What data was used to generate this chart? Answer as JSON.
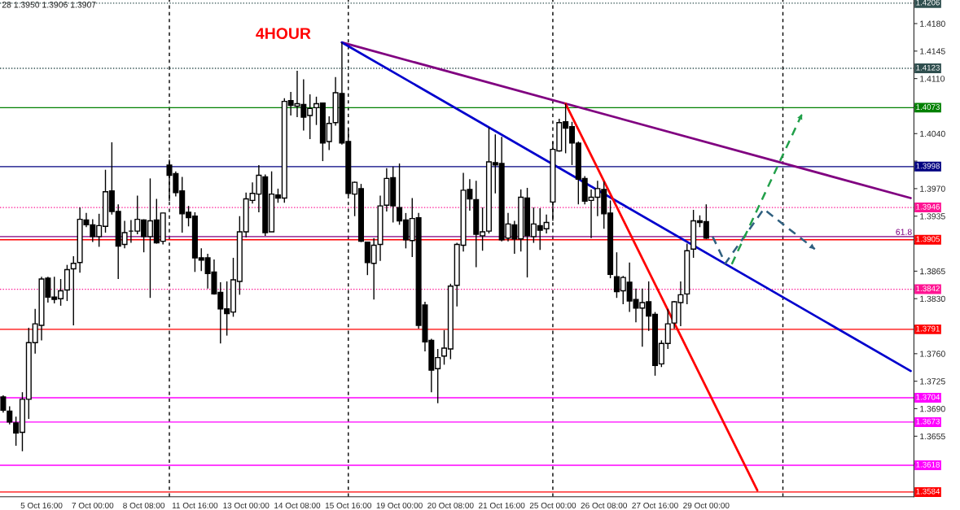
{
  "chart_data": {
    "type": "candlestick",
    "categories": [
      null,
      null,
      null,
      null,
      null,
      null,
      "5 Oct 16:00",
      null,
      null,
      null,
      null,
      null,
      null,
      null,
      "7 Oct 00:00",
      null,
      null,
      null,
      null,
      null,
      null,
      null,
      "8 Oct 08:00",
      null,
      null,
      null,
      null,
      null,
      null,
      null,
      "11 Oct 16:00",
      null,
      null,
      null,
      null,
      null,
      null,
      null,
      "13 Oct 00:00",
      null,
      null,
      null,
      null,
      null,
      null,
      null,
      "14 Oct 08:00",
      null,
      null,
      null,
      null,
      null,
      null,
      null,
      "15 Oct 16:00",
      null,
      null,
      null,
      null,
      null,
      null,
      null,
      "19 Oct 00:00",
      null,
      null,
      null,
      null,
      null,
      null,
      null,
      "20 Oct 08:00",
      null,
      null,
      null,
      null,
      null,
      null,
      null,
      "21 Oct 16:00",
      null,
      null,
      null,
      null,
      null,
      null,
      null,
      "25 Oct 00:00",
      null,
      null,
      null,
      null,
      null,
      null,
      null,
      "26 Oct 08:00",
      null,
      null,
      null,
      null,
      null,
      null,
      null,
      "27 Oct 16:00",
      null,
      null,
      null,
      null,
      null,
      null,
      null,
      "29 Oct 00:00",
      null,
      null,
      null,
      null,
      null,
      null,
      null,
      null,
      null,
      null,
      null,
      null,
      null,
      null,
      null,
      null,
      null,
      null,
      null,
      null,
      null,
      null,
      null,
      null,
      null,
      null,
      null,
      null,
      null,
      null,
      null,
      null
    ],
    "ohlc": [
      [
        1.3705,
        1.3707,
        1.3685,
        1.3688
      ],
      [
        1.3687,
        1.3693,
        1.367,
        1.3673
      ],
      [
        1.3672,
        1.368,
        1.3643,
        1.3659
      ],
      [
        1.366,
        1.3711,
        1.3636,
        1.3702
      ],
      [
        1.3702,
        1.3793,
        1.3677,
        1.3774
      ],
      [
        1.3774,
        1.3817,
        1.376,
        1.3798
      ],
      [
        1.3796,
        1.3858,
        1.3777,
        1.3855
      ],
      [
        1.3856,
        1.3858,
        1.3825,
        1.3832
      ],
      [
        1.3832,
        1.3858,
        1.3824,
        1.3829
      ],
      [
        1.383,
        1.3855,
        1.3821,
        1.384
      ],
      [
        1.3841,
        1.3873,
        1.3827,
        1.3867
      ],
      [
        1.3868,
        1.3884,
        1.3796,
        1.3875
      ],
      [
        1.3876,
        1.3946,
        1.3863,
        1.3931
      ],
      [
        1.393,
        1.3939,
        1.3921,
        1.3924
      ],
      [
        1.3924,
        1.3931,
        1.3902,
        1.3909
      ],
      [
        1.3909,
        1.3938,
        1.3896,
        1.3923
      ],
      [
        1.3922,
        1.3994,
        1.3914,
        1.3966
      ],
      [
        1.3967,
        1.4029,
        1.3937,
        1.3941
      ],
      [
        1.3941,
        1.395,
        1.3855,
        1.3897
      ],
      [
        1.3899,
        1.3929,
        1.3894,
        1.3914
      ],
      [
        1.3916,
        1.393,
        1.3901,
        1.3916
      ],
      [
        1.3916,
        1.3961,
        1.3912,
        1.3931
      ],
      [
        1.393,
        1.3931,
        1.3889,
        1.3909
      ],
      [
        1.3909,
        1.3983,
        1.3831,
        1.3929
      ],
      [
        1.393,
        1.3957,
        1.39,
        1.3901
      ],
      [
        1.3903,
        1.3939,
        1.3899,
        1.3939
      ],
      [
        1.4,
        1.4007,
        1.3954,
        1.3987
      ],
      [
        1.3989,
        1.3992,
        1.396,
        1.3965
      ],
      [
        1.3967,
        1.3985,
        1.3914,
        1.3938
      ],
      [
        1.394,
        1.3948,
        1.3922,
        1.3933
      ],
      [
        1.3935,
        1.394,
        1.3864,
        1.3882
      ],
      [
        1.3882,
        1.3894,
        1.3865,
        1.3879
      ],
      [
        1.3882,
        1.3887,
        1.3843,
        1.3862
      ],
      [
        1.3864,
        1.388,
        1.3835,
        1.3836
      ],
      [
        1.3838,
        1.3851,
        1.3773,
        1.3817
      ],
      [
        1.3817,
        1.3852,
        1.3783,
        1.3811
      ],
      [
        1.3813,
        1.3882,
        1.3807,
        1.3854
      ],
      [
        1.3852,
        1.3935,
        1.3835,
        1.3915
      ],
      [
        1.3915,
        1.3965,
        1.3908,
        1.3957
      ],
      [
        1.3955,
        1.3978,
        1.3951,
        1.3964
      ],
      [
        1.3963,
        1.4,
        1.394,
        1.3987
      ],
      [
        1.3985,
        1.3988,
        1.391,
        1.3914
      ],
      [
        1.3915,
        1.3992,
        1.3915,
        1.3963
      ],
      [
        1.3962,
        1.397,
        1.3952,
        1.3958
      ],
      [
        1.3958,
        1.4085,
        1.3952,
        1.4081
      ],
      [
        1.4082,
        1.4093,
        1.4063,
        1.4076
      ],
      [
        1.4075,
        1.412,
        1.4061,
        1.4078
      ],
      [
        1.4077,
        1.4109,
        1.4044,
        1.4061
      ],
      [
        1.4063,
        1.409,
        1.4033,
        1.4072
      ],
      [
        1.4073,
        1.4087,
        1.4051,
        1.4078
      ],
      [
        1.4079,
        1.4079,
        1.4005,
        1.4028
      ],
      [
        1.403,
        1.4062,
        1.4019,
        1.4053
      ],
      [
        1.4054,
        1.4112,
        1.405,
        1.4092
      ],
      [
        1.4091,
        1.4156,
        1.4026,
        1.4028
      ],
      [
        1.403,
        1.4046,
        1.3961,
        1.3964
      ],
      [
        1.3963,
        1.3979,
        1.3935,
        1.3978
      ],
      [
        1.397,
        1.3976,
        1.3902,
        1.3903
      ],
      [
        1.3902,
        1.3902,
        1.386,
        1.3876
      ],
      [
        1.3875,
        1.3907,
        1.3829,
        1.3898
      ],
      [
        1.3899,
        1.3961,
        1.3878,
        1.3948
      ],
      [
        1.3949,
        1.3996,
        1.3941,
        1.3983
      ],
      [
        1.3984,
        1.3998,
        1.3927,
        1.3948
      ],
      [
        1.3946,
        1.4002,
        1.3924,
        1.3929
      ],
      [
        1.393,
        1.3939,
        1.3894,
        1.3905
      ],
      [
        1.3904,
        1.3958,
        1.3883,
        1.3932
      ],
      [
        1.3933,
        1.3939,
        1.3792,
        1.3796
      ],
      [
        1.3822,
        1.3826,
        1.3763,
        1.3775
      ],
      [
        1.3777,
        1.3779,
        1.3711,
        1.3739
      ],
      [
        1.3741,
        1.3766,
        1.3697,
        1.3755
      ],
      [
        1.3757,
        1.379,
        1.3746,
        1.3767
      ],
      [
        1.3766,
        1.3849,
        1.3753,
        1.3846
      ],
      [
        1.3847,
        1.3901,
        1.382,
        1.3899
      ],
      [
        1.3898,
        1.399,
        1.389,
        1.3968
      ],
      [
        1.3969,
        1.3982,
        1.3942,
        1.3957
      ],
      [
        1.3956,
        1.398,
        1.387,
        1.3912
      ],
      [
        1.391,
        1.3946,
        1.3891,
        1.3915
      ],
      [
        1.3916,
        1.4048,
        1.3913,
        1.4004
      ],
      [
        1.4003,
        1.4039,
        1.3964,
        1.4
      ],
      [
        1.4002,
        1.4036,
        1.3903,
        1.3905
      ],
      [
        1.3907,
        1.3939,
        1.3903,
        1.3925
      ],
      [
        1.3924,
        1.3929,
        1.3887,
        1.3906
      ],
      [
        1.3906,
        1.3969,
        1.389,
        1.3959
      ],
      [
        1.3958,
        1.3971,
        1.3857,
        1.391
      ],
      [
        1.3909,
        1.3946,
        1.3901,
        1.3925
      ],
      [
        1.3923,
        1.3945,
        1.3892,
        1.3917
      ],
      [
        1.3919,
        1.3937,
        1.3913,
        1.3927
      ],
      [
        1.3953,
        1.403,
        1.3929,
        1.402
      ],
      [
        1.4018,
        1.4059,
        1.4017,
        1.4054
      ],
      [
        1.4055,
        1.4078,
        1.4015,
        1.4047
      ],
      [
        1.4049,
        1.4055,
        1.4,
        1.4028
      ],
      [
        1.4028,
        1.403,
        1.395,
        1.3982
      ],
      [
        1.3983,
        1.3986,
        1.395,
        1.3954
      ],
      [
        1.3955,
        1.3969,
        1.3907,
        1.3959
      ],
      [
        1.3959,
        1.398,
        1.3935,
        1.397
      ],
      [
        1.3969,
        1.3979,
        1.3919,
        1.3938
      ],
      [
        1.3939,
        1.3955,
        1.3856,
        1.3861
      ],
      [
        1.3858,
        1.3889,
        1.3831,
        1.3839
      ],
      [
        1.384,
        1.3859,
        1.3823,
        1.3857
      ],
      [
        1.3851,
        1.3876,
        1.3813,
        1.3827
      ],
      [
        1.3829,
        1.3843,
        1.38,
        1.3818
      ],
      [
        1.3818,
        1.3843,
        1.3769,
        1.3825
      ],
      [
        1.3826,
        1.3852,
        1.3789,
        1.3808
      ],
      [
        1.381,
        1.3813,
        1.3732,
        1.3745
      ],
      [
        1.3747,
        1.3777,
        1.3743,
        1.3773
      ],
      [
        1.3773,
        1.3817,
        1.3766,
        1.3798
      ],
      [
        1.3799,
        1.3827,
        1.3792,
        1.3826
      ],
      [
        1.3825,
        1.3852,
        1.3795,
        1.3835
      ],
      [
        1.3836,
        1.39,
        1.3823,
        1.3891
      ],
      [
        1.3893,
        1.3943,
        1.3882,
        1.3929
      ],
      [
        1.3929,
        1.3936,
        1.3921,
        1.3927
      ],
      [
        1.3928,
        1.395,
        1.3906,
        1.3907
      ],
      null,
      null,
      null,
      null,
      null,
      null,
      null,
      null,
      null,
      null,
      null,
      null,
      null,
      null,
      null,
      null,
      null,
      null,
      null,
      null,
      null,
      null,
      null,
      null,
      null,
      null,
      null,
      null,
      null,
      null,
      null,
      null
    ],
    "series": [
      {
        "type": "line",
        "values": [
          null,
          null,
          null,
          null,
          null,
          null,
          null,
          null,
          null,
          null,
          null,
          null,
          null,
          null,
          null,
          null,
          null,
          null,
          null,
          null,
          null,
          null,
          null,
          null,
          null,
          null,
          null,
          null,
          null,
          null,
          null,
          null,
          null,
          null,
          null,
          null,
          null,
          null,
          null,
          null,
          null,
          null,
          null,
          null,
          null,
          null,
          null,
          null,
          null,
          null,
          null,
          null,
          null,
          1.4156,
          null,
          null,
          null,
          null,
          null,
          null,
          null,
          null,
          null,
          null,
          null,
          null,
          null,
          null,
          null,
          null,
          null,
          null,
          null,
          null,
          null,
          null,
          null,
          null,
          null,
          null,
          null,
          null,
          null,
          null,
          null,
          null,
          null,
          null,
          null,
          null,
          null,
          null,
          null,
          null,
          null,
          null,
          null,
          null,
          null,
          null,
          null,
          null,
          null,
          null,
          null,
          null,
          null,
          null,
          null,
          null,
          null,
          null,
          null,
          null,
          null,
          null,
          null,
          null,
          null,
          null,
          null,
          null,
          null,
          null,
          null,
          null,
          null,
          null,
          null,
          null,
          null,
          null,
          null,
          null,
          null,
          null,
          null,
          null,
          null,
          null,
          null,
          null,
          1.3958
        ],
        "color": "#800080",
        "line_style": "solid"
      },
      {
        "type": "line",
        "values": [
          null,
          null,
          null,
          null,
          null,
          null,
          null,
          null,
          null,
          null,
          null,
          null,
          null,
          null,
          null,
          null,
          null,
          null,
          null,
          null,
          null,
          null,
          null,
          null,
          null,
          null,
          null,
          null,
          null,
          null,
          null,
          null,
          null,
          null,
          null,
          null,
          null,
          null,
          null,
          null,
          null,
          null,
          null,
          null,
          null,
          null,
          null,
          null,
          null,
          null,
          null,
          null,
          null,
          1.4156,
          null,
          null,
          null,
          null,
          null,
          null,
          null,
          null,
          null,
          null,
          null,
          null,
          null,
          null,
          null,
          null,
          null,
          null,
          null,
          null,
          null,
          null,
          null,
          null,
          null,
          null,
          null,
          null,
          null,
          null,
          null,
          null,
          null,
          null,
          null,
          null,
          null,
          null,
          null,
          null,
          null,
          null,
          null,
          null,
          null,
          null,
          null,
          null,
          null,
          null,
          null,
          null,
          null,
          null,
          null,
          null,
          null,
          null,
          null,
          null,
          null,
          null,
          null,
          null,
          null,
          null,
          null,
          null,
          null,
          null,
          null,
          null,
          null,
          null,
          null,
          null,
          null,
          null,
          null,
          null,
          null,
          null,
          null,
          null,
          null,
          null,
          null,
          null,
          1.3738
        ],
        "color": "#0000cd",
        "line_style": "solid"
      },
      {
        "type": "line",
        "values": [
          null,
          null,
          null,
          null,
          null,
          null,
          null,
          null,
          null,
          null,
          null,
          null,
          null,
          null,
          null,
          null,
          null,
          null,
          null,
          null,
          null,
          null,
          null,
          null,
          null,
          null,
          null,
          null,
          null,
          null,
          null,
          null,
          null,
          null,
          null,
          null,
          null,
          null,
          null,
          null,
          null,
          null,
          null,
          null,
          null,
          null,
          null,
          null,
          null,
          null,
          null,
          null,
          null,
          null,
          null,
          null,
          null,
          null,
          null,
          null,
          null,
          null,
          null,
          null,
          null,
          null,
          null,
          null,
          null,
          null,
          null,
          null,
          null,
          null,
          null,
          null,
          null,
          null,
          null,
          null,
          null,
          null,
          null,
          null,
          null,
          null,
          null,
          null,
          1.4078,
          null,
          null,
          null,
          null,
          null,
          null,
          null,
          null,
          null,
          null,
          null,
          null,
          null,
          null,
          null,
          null,
          null,
          null,
          null,
          null,
          null,
          null,
          null,
          null,
          null,
          null,
          null,
          null,
          null,
          1.3586,
          null,
          null,
          null,
          null,
          null,
          null,
          null,
          null,
          null,
          null,
          null,
          null,
          null,
          null,
          null,
          null,
          null,
          null,
          null,
          null,
          null,
          null,
          null,
          null
        ],
        "color": "#ff0000",
        "line_style": "solid"
      },
      {
        "type": "line",
        "values": [
          null,
          null,
          null,
          null,
          null,
          null,
          null,
          null,
          null,
          null,
          null,
          null,
          null,
          null,
          null,
          null,
          null,
          null,
          null,
          null,
          null,
          null,
          null,
          null,
          null,
          null,
          null,
          null,
          null,
          null,
          null,
          null,
          null,
          null,
          null,
          null,
          null,
          null,
          null,
          null,
          null,
          null,
          null,
          null,
          null,
          null,
          null,
          null,
          null,
          null,
          null,
          null,
          null,
          null,
          null,
          null,
          null,
          null,
          null,
          null,
          null,
          null,
          null,
          null,
          null,
          null,
          null,
          null,
          null,
          null,
          null,
          null,
          null,
          null,
          null,
          null,
          null,
          null,
          null,
          null,
          null,
          null,
          null,
          null,
          null,
          null,
          null,
          null,
          null,
          null,
          null,
          null,
          null,
          null,
          null,
          null,
          null,
          null,
          null,
          null,
          null,
          null,
          null,
          null,
          null,
          null,
          null,
          null,
          null,
          null,
          null,
          1.3909,
          null,
          1.3875,
          null,
          null,
          null,
          null,
          null,
          1.3944,
          null,
          null,
          null,
          null,
          null,
          null,
          null,
          1.3893,
          null,
          null,
          null,
          null,
          null,
          null,
          null,
          null,
          null,
          null,
          null,
          null,
          null,
          null,
          null
        ],
        "color": "#2f5f7f",
        "line_style": "dashed"
      },
      {
        "type": "line",
        "values": [
          null,
          null,
          null,
          null,
          null,
          null,
          null,
          null,
          null,
          null,
          null,
          null,
          null,
          null,
          null,
          null,
          null,
          null,
          null,
          null,
          null,
          null,
          null,
          null,
          null,
          null,
          null,
          null,
          null,
          null,
          null,
          null,
          null,
          null,
          null,
          null,
          null,
          null,
          null,
          null,
          null,
          null,
          null,
          null,
          null,
          null,
          null,
          null,
          null,
          null,
          null,
          null,
          null,
          null,
          null,
          null,
          null,
          null,
          null,
          null,
          null,
          null,
          null,
          null,
          null,
          null,
          null,
          null,
          null,
          null,
          null,
          null,
          null,
          null,
          null,
          null,
          null,
          null,
          null,
          null,
          null,
          null,
          null,
          null,
          null,
          null,
          null,
          null,
          null,
          null,
          null,
          null,
          null,
          null,
          null,
          null,
          null,
          null,
          null,
          null,
          null,
          null,
          null,
          null,
          null,
          null,
          null,
          null,
          null,
          null,
          null,
          null,
          null,
          null,
          1.3874,
          null,
          null,
          null,
          null,
          null,
          null,
          null,
          null,
          null,
          null,
          1.4065,
          null,
          null,
          null,
          null,
          null,
          null,
          null,
          null,
          null,
          null,
          null,
          null,
          null,
          null,
          null,
          null,
          null
        ],
        "color": "#22a04a",
        "line_style": "dashed"
      }
    ],
    "ylim": [
      1.3578,
      1.421
    ],
    "yticks": [
      {
        "value": 1.362,
        "label": null
      },
      {
        "value": 1.3655,
        "label": "1.3655"
      },
      {
        "value": 1.369,
        "label": "1.3690"
      },
      {
        "value": 1.3725,
        "label": "1.3725"
      },
      {
        "value": 1.376,
        "label": "1.3760"
      },
      {
        "value": 1.3795,
        "label": null
      },
      {
        "value": 1.383,
        "label": "1.3830"
      },
      {
        "value": 1.3865,
        "label": "1.3865"
      },
      {
        "value": 1.39,
        "label": null
      },
      {
        "value": 1.3935,
        "label": "1.3935"
      },
      {
        "value": 1.397,
        "label": "1.3970"
      },
      {
        "value": 1.4005,
        "label": null
      },
      {
        "value": 1.404,
        "label": "1.4040"
      },
      {
        "value": 1.4075,
        "label": null
      },
      {
        "value": 1.411,
        "label": "1.4110"
      },
      {
        "value": 1.4145,
        "label": "1.4145"
      },
      {
        "value": 1.418,
        "label": "1.4180"
      }
    ],
    "ref_lines": [
      {
        "axis": "y",
        "value": 1.4206,
        "label": "1.4206",
        "color": "#2f4f4f",
        "line_style": "dotted"
      },
      {
        "axis": "y",
        "value": 1.4123,
        "label": "1.4123",
        "color": "#2f4f4f",
        "line_style": "dotted"
      },
      {
        "axis": "y",
        "value": 1.4073,
        "label": "1.4073",
        "color": "#008000",
        "line_style": "solid"
      },
      {
        "axis": "y",
        "value": 1.3998,
        "label": "1.3998",
        "color": "#000080",
        "line_style": "solid"
      },
      {
        "axis": "y",
        "value": 1.3946,
        "label": "1.3946",
        "color": "#ff1493",
        "line_style": "dotted"
      },
      {
        "axis": "y",
        "value": 1.3909,
        "color": "#800080",
        "line_style": "solid"
      },
      {
        "axis": "y",
        "value": 1.3905,
        "label": "1.3905",
        "color": "#ff0000",
        "line_style": "solid"
      },
      {
        "axis": "y",
        "value": 1.3842,
        "label": "1.3842",
        "color": "#ff1493",
        "line_style": "dotted"
      },
      {
        "axis": "y",
        "value": 1.3791,
        "label": "1.3791",
        "color": "#ff0000",
        "line_style": "solid"
      },
      {
        "axis": "y",
        "value": 1.3704,
        "label": "1.3704",
        "color": "#ff00ff",
        "line_style": "solid"
      },
      {
        "axis": "y",
        "value": 1.3673,
        "label": "1.3673",
        "color": "#ff00ff",
        "line_style": "solid"
      },
      {
        "axis": "y",
        "value": 1.3618,
        "label": "1.3618",
        "color": "#ff00ff",
        "line_style": "solid"
      },
      {
        "axis": "y",
        "value": 1.3584,
        "label": "1.3584",
        "color": "#ff0000",
        "line_style": "solid"
      }
    ],
    "annotations": [
      "28 1.3950 1.3906 1.3907",
      "4HOUR",
      {
        "text": "61.8",
        "y": 1.3909
      }
    ]
  }
}
